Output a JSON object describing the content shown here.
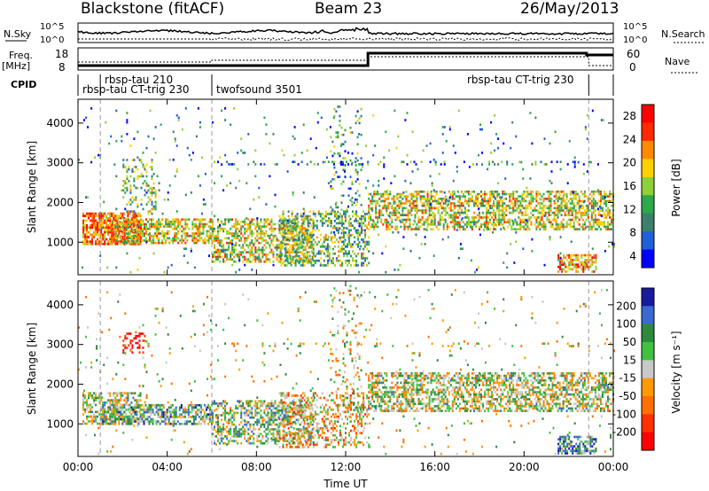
{
  "header": {
    "station": "Blackstone (fitACF)",
    "beam": "Beam 23",
    "date": "26/May/2013"
  },
  "noise_panel": {
    "left_label": "N.Sky",
    "right_label": "N.Search",
    "ticks_left": [
      "10^5",
      "10^0"
    ],
    "ticks_right": [
      "10^5",
      "10^0"
    ]
  },
  "freq_panel": {
    "left_label_line1": "Freq.",
    "left_label_line2": "[MHz]",
    "right_label": "Nave",
    "ticks_left": [
      "18",
      "8"
    ],
    "ticks_right": [
      "60",
      "0"
    ]
  },
  "cpid_panel": {
    "label": "CPID",
    "programs": [
      {
        "name": "rbsp-tau 210",
        "start_hr": 1.0
      },
      {
        "name": "rbsp-tau CT-trig 230",
        "start_hr": 0.0
      },
      {
        "name": "twofsound 3501",
        "start_hr": 6.0
      },
      {
        "name": "rbsp-tau CT-trig 230",
        "start_hr": 18.1
      }
    ],
    "boundaries_hr": [
      1.0,
      6.0,
      22.9
    ]
  },
  "chart_data": [
    {
      "type": "heatmap",
      "title": "",
      "parameter": "Power",
      "ylabel": "Slant Range [km]",
      "xlabel": "",
      "x_ticks": [
        "00:00",
        "04:00",
        "08:00",
        "12:00",
        "16:00",
        "20:00",
        "00:00"
      ],
      "x_range_hr": [
        0,
        24
      ],
      "y_ticks": [
        1000,
        2000,
        3000,
        4000
      ],
      "ylim": [
        180,
        4600
      ],
      "colorbar": {
        "label": "Power [dB]",
        "ticks": [
          4,
          8,
          12,
          16,
          20,
          24,
          28
        ],
        "range": [
          2,
          30
        ],
        "colors": [
          "#0000ff",
          "#1f5fd8",
          "#3c7f6c",
          "#2ea84a",
          "#8fd038",
          "#ffd000",
          "#ff8a00",
          "#ff2a00",
          "#ff0000"
        ]
      },
      "scatter_regions": [
        {
          "hours": [
            0.2,
            2.8
          ],
          "range_km": [
            950,
            1750
          ],
          "level": 0.78,
          "density": 0.75
        },
        {
          "hours": [
            1.5,
            6.0
          ],
          "range_km": [
            1000,
            1600
          ],
          "level": 0.6,
          "density": 0.6
        },
        {
          "hours": [
            2.0,
            3.5
          ],
          "range_km": [
            1700,
            3100
          ],
          "level": 0.45,
          "density": 0.25
        },
        {
          "hours": [
            6.0,
            10.5
          ],
          "range_km": [
            500,
            1600
          ],
          "level": 0.55,
          "density": 0.55
        },
        {
          "hours": [
            9.0,
            13.0
          ],
          "range_km": [
            400,
            1800
          ],
          "level": 0.45,
          "density": 0.4
        },
        {
          "hours": [
            11.3,
            12.7
          ],
          "range_km": [
            1000,
            4500
          ],
          "level": 0.35,
          "density": 0.12
        },
        {
          "hours": [
            13.0,
            24.0
          ],
          "range_km": [
            1300,
            2300
          ],
          "level": 0.55,
          "density": 0.55
        },
        {
          "hours": [
            21.5,
            23.2
          ],
          "range_km": [
            250,
            700
          ],
          "level": 0.7,
          "density": 0.6
        },
        {
          "hours": [
            6.0,
            24.0
          ],
          "range_km": [
            2950,
            3050
          ],
          "level": 0.25,
          "density": 0.15
        },
        {
          "hours": [
            0.0,
            24.0
          ],
          "range_km": [
            250,
            4400
          ],
          "level": 0.3,
          "density": 0.02
        }
      ]
    },
    {
      "type": "heatmap",
      "title": "",
      "parameter": "Velocity",
      "ylabel": "Slant Range [km]",
      "xlabel": "Time UT",
      "x_ticks": [
        "00:00",
        "04:00",
        "08:00",
        "12:00",
        "16:00",
        "20:00",
        "00:00"
      ],
      "x_range_hr": [
        0,
        24
      ],
      "y_ticks": [
        1000,
        2000,
        3000,
        4000
      ],
      "ylim": [
        180,
        4600
      ],
      "colorbar": {
        "label": "Velocity [m s⁻¹]",
        "ticks": [
          200,
          100,
          50,
          15,
          -15,
          -50,
          -100,
          -200
        ],
        "colors": [
          "#1a1aa0",
          "#3a6ad0",
          "#2e8a3a",
          "#3fc23f",
          "#c8c8c8",
          "#ff9a00",
          "#ff7000",
          "#ff3000",
          "#ff0000"
        ]
      },
      "scatter_regions": [
        {
          "hours": [
            0.2,
            2.8
          ],
          "range_km": [
            1000,
            1800
          ],
          "level": 0.45,
          "density": 0.55
        },
        {
          "hours": [
            1.0,
            6.0
          ],
          "range_km": [
            1000,
            1500
          ],
          "level": 0.35,
          "density": 0.6
        },
        {
          "hours": [
            2.0,
            3.0
          ],
          "range_km": [
            2800,
            3300
          ],
          "level": 0.95,
          "density": 0.35
        },
        {
          "hours": [
            6.0,
            10.5
          ],
          "range_km": [
            500,
            1600
          ],
          "level": 0.4,
          "density": 0.5
        },
        {
          "hours": [
            9.0,
            13.0
          ],
          "range_km": [
            400,
            1800
          ],
          "level": 0.6,
          "density": 0.35
        },
        {
          "hours": [
            11.3,
            12.7
          ],
          "range_km": [
            1000,
            4500
          ],
          "level": 0.5,
          "density": 0.12
        },
        {
          "hours": [
            13.0,
            24.0
          ],
          "range_km": [
            1300,
            2300
          ],
          "level": 0.48,
          "density": 0.55
        },
        {
          "hours": [
            21.5,
            23.2
          ],
          "range_km": [
            250,
            700
          ],
          "level": 0.3,
          "density": 0.6
        },
        {
          "hours": [
            6.0,
            24.0
          ],
          "range_km": [
            2950,
            3050
          ],
          "level": 0.5,
          "density": 0.15
        },
        {
          "hours": [
            0.0,
            24.0
          ],
          "range_km": [
            250,
            4400
          ],
          "level": 0.5,
          "density": 0.02
        }
      ]
    }
  ]
}
